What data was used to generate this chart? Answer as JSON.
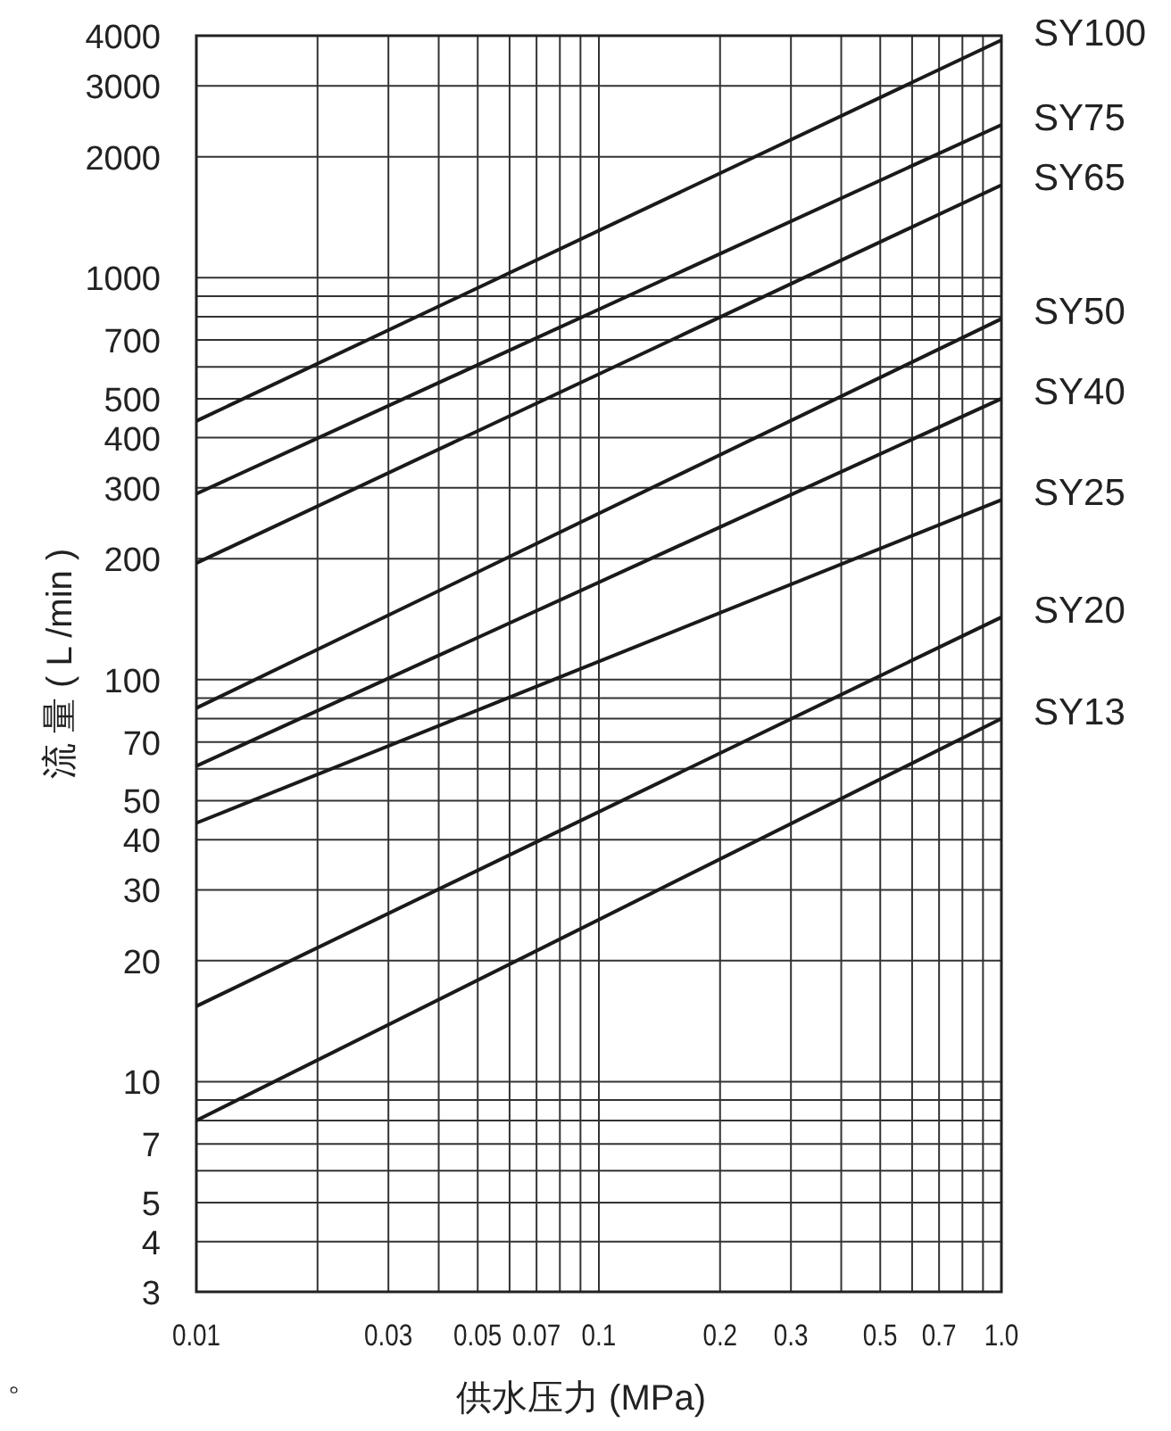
{
  "chart_data": {
    "type": "line",
    "log": "xy",
    "grid": true,
    "xlabel": "供水压力 (MPa)",
    "ylabel": "流 量 ( L /min )",
    "xlim": [
      0.01,
      1
    ],
    "ylim": [
      3,
      4000
    ],
    "xticks": [
      0.01,
      {
        "value": 0.02,
        "label": null
      },
      0.03,
      {
        "value": 0.04,
        "label": null
      },
      0.05,
      {
        "value": 0.06,
        "label": null
      },
      0.07,
      {
        "value": 0.08,
        "label": null
      },
      {
        "value": 0.09,
        "label": null
      },
      0.1,
      0.2,
      0.3,
      {
        "value": 0.4,
        "label": null
      },
      0.5,
      {
        "value": 0.6,
        "label": null
      },
      0.7,
      {
        "value": 0.8,
        "label": null
      },
      {
        "value": 0.9,
        "label": null
      },
      {
        "value": 1,
        "label": "1.0"
      }
    ],
    "yticks": [
      3,
      4,
      5,
      {
        "value": 6,
        "label": null
      },
      7,
      {
        "value": 8,
        "label": null
      },
      {
        "value": 9,
        "label": null
      },
      10,
      20,
      30,
      40,
      50,
      {
        "value": 60,
        "label": null
      },
      70,
      {
        "value": 80,
        "label": null
      },
      {
        "value": 90,
        "label": null
      },
      100,
      200,
      300,
      400,
      500,
      {
        "value": 600,
        "label": null
      },
      700,
      {
        "value": 800,
        "label": null
      },
      {
        "value": 900,
        "label": null
      },
      1000,
      2000,
      3000,
      4000
    ],
    "x": [
      0.01,
      1
    ],
    "series": [
      {
        "name": "SY100",
        "color": "#1a1a1a",
        "values": [
          440,
          3900
        ]
      },
      {
        "name": "SY75",
        "color": "#1a1a1a",
        "values": [
          290,
          2400
        ]
      },
      {
        "name": "SY65",
        "color": "#1a1a1a",
        "values": [
          195,
          1700
        ]
      },
      {
        "name": "SY50",
        "color": "#1a1a1a",
        "values": [
          85,
          790
        ]
      },
      {
        "name": "SY40",
        "color": "#1a1a1a",
        "values": [
          61,
          500
        ]
      },
      {
        "name": "SY25",
        "color": "#1a1a1a",
        "values": [
          44,
          280
        ]
      },
      {
        "name": "SY20",
        "color": "#1a1a1a",
        "values": [
          15.4,
          143
        ]
      },
      {
        "name": "SY13",
        "color": "#1a1a1a",
        "values": [
          8,
          80
        ]
      }
    ],
    "annotations": [
      "。"
    ]
  }
}
